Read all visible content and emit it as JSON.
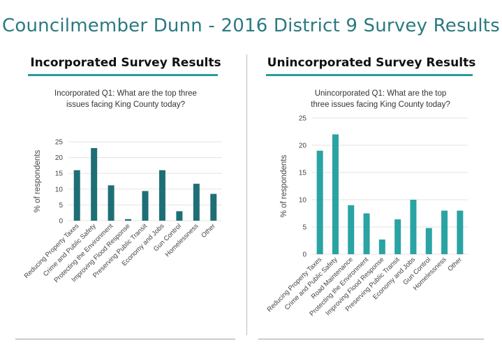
{
  "page": {
    "title": "Councilmember Dunn - 2016 District 9 Survey Results"
  },
  "panels": {
    "incorporated": {
      "heading": "Incorporated Survey Results"
    },
    "unincorporated": {
      "heading": "Unincorporated Survey Results"
    }
  },
  "colors": {
    "title": "#2b7a80",
    "accent_line": "#2a9a9d",
    "incorporated_bar": "#1e6f75",
    "unincorporated_bar": "#2aa3a3",
    "gridline": "#e3e3e3"
  },
  "chart_data": [
    {
      "type": "bar",
      "title": "Incorporated Q1: What are the top three issues facing King County today?",
      "title_lines": [
        "Incorporated Q1: What are the top three",
        "issues facing King County today?"
      ],
      "ylabel": "% of respondents",
      "xlabel": "",
      "ylim": [
        0,
        25
      ],
      "yticks": [
        0,
        5,
        10,
        15,
        20,
        25
      ],
      "grid": true,
      "categories": [
        "Reducing Property Taxes",
        "Crime and Public Safety",
        "Protecting the Environment",
        "Improving Flood Response",
        "Preserving Public Transit",
        "Economy and Jobs",
        "Gun Control",
        "Homelessness",
        "Other"
      ],
      "values": [
        16,
        23,
        11.2,
        0.5,
        9.4,
        16,
        3,
        11.7,
        8.5
      ]
    },
    {
      "type": "bar",
      "title": "Unincorporated Q1: What are the top three issues facing King County today?",
      "title_lines": [
        "Unincorporated Q1: What are the top",
        "three issues facing King County today?"
      ],
      "ylabel": "% of respondents",
      "xlabel": "",
      "ylim": [
        0,
        25
      ],
      "yticks": [
        0,
        5,
        10,
        15,
        20,
        25
      ],
      "grid": true,
      "categories": [
        "Reducing Property Taxes",
        "Crime and Public Safety",
        "Road Maintenance",
        "Protecting the Environment",
        "Improving Flood Response",
        "Preserving Public Transit",
        "Economy and Jobs",
        "Gun Control",
        "Homelessness",
        "Other"
      ],
      "values": [
        19,
        22,
        9,
        7.5,
        2.7,
        6.4,
        10,
        4.8,
        8,
        8
      ]
    }
  ]
}
